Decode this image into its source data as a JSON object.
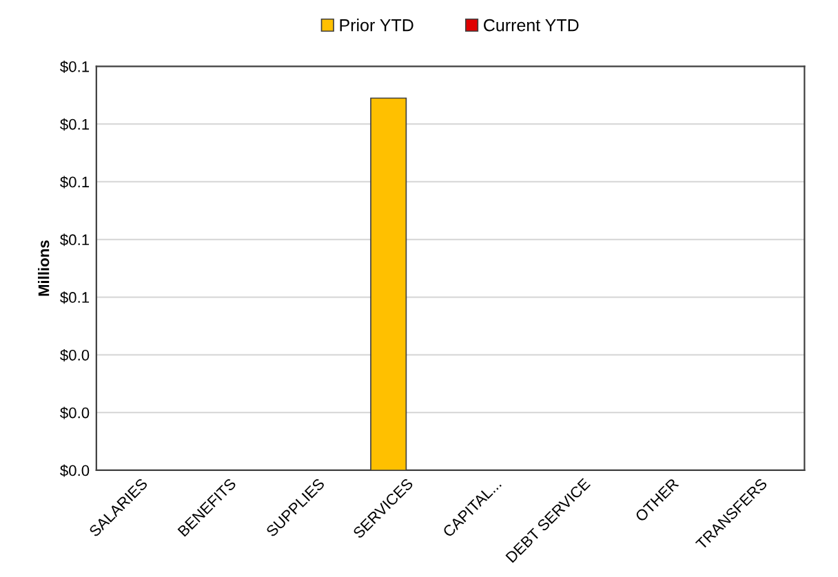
{
  "chart_data": {
    "type": "bar",
    "ylabel": "Millions",
    "categories": [
      "SALARIES",
      "BENEFITS",
      "SUPPLIES",
      "SERVICES",
      "CAPITAL...",
      "DEBT SERVICE",
      "OTHER",
      "TRANSFERS"
    ],
    "series": [
      {
        "name": "Prior YTD",
        "color": "#ffc000",
        "values": [
          0,
          0,
          0,
          0.129,
          0,
          0,
          0,
          0
        ]
      },
      {
        "name": "Current YTD",
        "color": "#e00000",
        "values": [
          0,
          0,
          0,
          0,
          0,
          0,
          0,
          0
        ]
      }
    ],
    "ylim": [
      0,
      0.14
    ],
    "yticks": [
      {
        "value": 0,
        "label": "$0.0"
      },
      {
        "value": 0.02,
        "label": "$0.0"
      },
      {
        "value": 0.04,
        "label": "$0.0"
      },
      {
        "value": 0.06,
        "label": "$0.1"
      },
      {
        "value": 0.08,
        "label": "$0.1"
      },
      {
        "value": 0.1,
        "label": "$0.1"
      },
      {
        "value": 0.12,
        "label": "$0.1"
      },
      {
        "value": 0.14,
        "label": "$0.1"
      }
    ],
    "grid": "y",
    "legend": "top"
  }
}
